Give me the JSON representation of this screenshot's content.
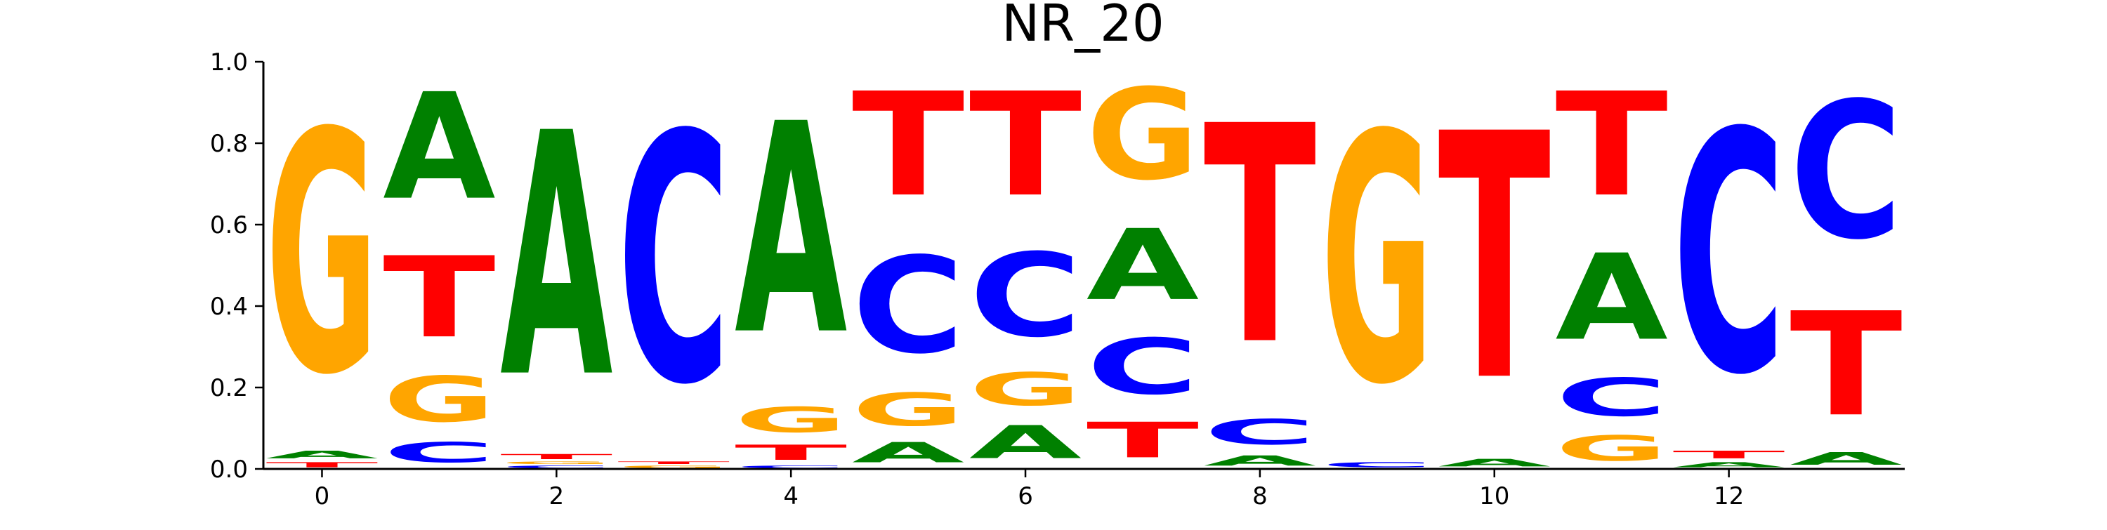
{
  "chart_data": {
    "type": "sequence-logo",
    "title": "NR_20",
    "xlabel": "",
    "ylabel": "",
    "xlim": [
      -0.5,
      13.5
    ],
    "ylim": [
      0,
      1
    ],
    "x_ticks": [
      0,
      2,
      4,
      6,
      8,
      10,
      12
    ],
    "y_ticks": [
      0.0,
      0.2,
      0.4,
      0.6,
      0.8,
      1.0
    ],
    "y_tick_labels": [
      "0.0",
      "0.2",
      "0.4",
      "0.6",
      "0.8",
      "1.0"
    ],
    "letter_colors": {
      "A": "#008000",
      "C": "#0000ff",
      "G": "#ffa500",
      "T": "#ff0000"
    },
    "positions": [
      {
        "pos": 0,
        "stack": [
          {
            "base": "T",
            "value": 0.02
          },
          {
            "base": "A",
            "value": 0.03
          },
          {
            "base": "G",
            "value": 0.95
          }
        ]
      },
      {
        "pos": 1,
        "stack": [
          {
            "base": "C",
            "value": 0.08
          },
          {
            "base": "G",
            "value": 0.18
          },
          {
            "base": "T",
            "value": 0.32
          },
          {
            "base": "A",
            "value": 0.42
          }
        ]
      },
      {
        "pos": 2,
        "stack": [
          {
            "base": "C",
            "value": 0.01
          },
          {
            "base": "G",
            "value": 0.01
          },
          {
            "base": "T",
            "value": 0.02
          },
          {
            "base": "A",
            "value": 0.96
          }
        ]
      },
      {
        "pos": 3,
        "stack": [
          {
            "base": "G",
            "value": 0.01
          },
          {
            "base": "T",
            "value": 0.01
          },
          {
            "base": "C",
            "value": 0.98
          }
        ]
      },
      {
        "pos": 4,
        "stack": [
          {
            "base": "C",
            "value": 0.01
          },
          {
            "base": "T",
            "value": 0.06
          },
          {
            "base": "G",
            "value": 0.1
          },
          {
            "base": "A",
            "value": 0.83
          }
        ]
      },
      {
        "pos": 5,
        "stack": [
          {
            "base": "A",
            "value": 0.08
          },
          {
            "base": "G",
            "value": 0.13
          },
          {
            "base": "C",
            "value": 0.38
          },
          {
            "base": "T",
            "value": 0.41
          }
        ]
      },
      {
        "pos": 6,
        "stack": [
          {
            "base": "A",
            "value": 0.13
          },
          {
            "base": "G",
            "value": 0.13
          },
          {
            "base": "C",
            "value": 0.33
          },
          {
            "base": "T",
            "value": 0.41
          }
        ]
      },
      {
        "pos": 7,
        "stack": [
          {
            "base": "T",
            "value": 0.14
          },
          {
            "base": "C",
            "value": 0.22
          },
          {
            "base": "A",
            "value": 0.28
          },
          {
            "base": "G",
            "value": 0.36
          }
        ]
      },
      {
        "pos": 8,
        "stack": [
          {
            "base": "A",
            "value": 0.04
          },
          {
            "base": "C",
            "value": 0.1
          },
          {
            "base": "T",
            "value": 0.86
          }
        ]
      },
      {
        "pos": 9,
        "stack": [
          {
            "base": "C",
            "value": 0.02
          },
          {
            "base": "G",
            "value": 0.98
          }
        ]
      },
      {
        "pos": 10,
        "stack": [
          {
            "base": "A",
            "value": 0.03
          },
          {
            "base": "T",
            "value": 0.97
          }
        ]
      },
      {
        "pos": 11,
        "stack": [
          {
            "base": "G",
            "value": 0.1
          },
          {
            "base": "C",
            "value": 0.15
          },
          {
            "base": "A",
            "value": 0.34
          },
          {
            "base": "T",
            "value": 0.41
          }
        ]
      },
      {
        "pos": 12,
        "stack": [
          {
            "base": "A",
            "value": 0.02
          },
          {
            "base": "T",
            "value": 0.03
          },
          {
            "base": "C",
            "value": 0.95
          }
        ]
      },
      {
        "pos": 13,
        "stack": [
          {
            "base": "A",
            "value": 0.05
          },
          {
            "base": "T",
            "value": 0.41
          },
          {
            "base": "C",
            "value": 0.54
          }
        ]
      }
    ],
    "grid": false,
    "legend": "none"
  }
}
